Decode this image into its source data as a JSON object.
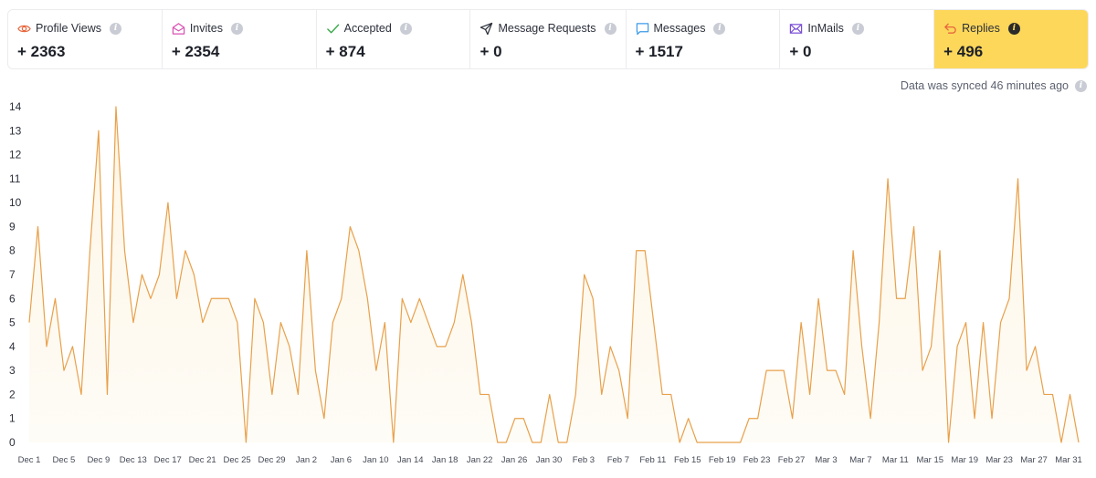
{
  "stats": [
    {
      "key": "profile_views",
      "label": "Profile Views",
      "value": "+ 2363",
      "icon": "eye-icon",
      "color": "#e8663d",
      "active": false
    },
    {
      "key": "invites",
      "label": "Invites",
      "value": "+ 2354",
      "icon": "envelope-open-icon",
      "color": "#d94fb2",
      "active": false
    },
    {
      "key": "accepted",
      "label": "Accepted",
      "value": "+ 874",
      "icon": "checkmark-icon",
      "color": "#3aa84a",
      "active": false
    },
    {
      "key": "message_requests",
      "label": "Message Requests",
      "value": "+ 0",
      "icon": "paper-plane-icon",
      "color": "#2b2f3a",
      "active": false
    },
    {
      "key": "messages",
      "label": "Messages",
      "value": "+ 1517",
      "icon": "chat-bubble-icon",
      "color": "#3b9be8",
      "active": false
    },
    {
      "key": "inmails",
      "label": "InMails",
      "value": "+ 0",
      "icon": "envelope-icon",
      "color": "#7b4fd6",
      "active": false
    },
    {
      "key": "replies",
      "label": "Replies",
      "value": "+ 496",
      "icon": "reply-arrow-icon",
      "color": "#e8663d",
      "active": true
    }
  ],
  "sync_text": "Data was synced 46 minutes ago",
  "colors": {
    "line": "#e8a04a",
    "area": "#fdf6e6",
    "active_card": "#fdd75a"
  },
  "chart_data": {
    "type": "area",
    "x_ticks": [
      "Dec 1",
      "Dec 5",
      "Dec 9",
      "Dec 13",
      "Dec 17",
      "Dec 21",
      "Dec 25",
      "Dec 29",
      "Jan 2",
      "Jan 6",
      "Jan 10",
      "Jan 14",
      "Jan 18",
      "Jan 22",
      "Jan 26",
      "Jan 30",
      "Feb 3",
      "Feb 7",
      "Feb 11",
      "Feb 15",
      "Feb 19",
      "Feb 23",
      "Feb 27",
      "Mar 3",
      "Mar 7",
      "Mar 11",
      "Mar 15",
      "Mar 19",
      "Mar 23",
      "Mar 27",
      "Mar 31"
    ],
    "y_ticks": [
      0,
      1,
      2,
      3,
      4,
      5,
      6,
      7,
      8,
      9,
      10,
      11,
      12,
      13,
      14
    ],
    "ylim": [
      0,
      14
    ],
    "x_start": "Dec 1",
    "x_end": "Mar 31",
    "series": [
      {
        "values": [
          5,
          9,
          4,
          6,
          3,
          4,
          2,
          8,
          13,
          2,
          14,
          8,
          5,
          7,
          6,
          7,
          10,
          6,
          8,
          7,
          5,
          6,
          6,
          6,
          5,
          0,
          6,
          5,
          2,
          5,
          4,
          2,
          8,
          3,
          1,
          5,
          6,
          9,
          8,
          6,
          3,
          5,
          0,
          6,
          5,
          6,
          5,
          4,
          4,
          5,
          7,
          5,
          2,
          2,
          0,
          0,
          1,
          1,
          0,
          0,
          2,
          0,
          0,
          2,
          7,
          6,
          2,
          4,
          3,
          1,
          8,
          8,
          5,
          2,
          2,
          0,
          1,
          0,
          0,
          0,
          0,
          0,
          0,
          1,
          1,
          3,
          3,
          3,
          1,
          5,
          2,
          6,
          3,
          3,
          2,
          8,
          4,
          1,
          5,
          11,
          6,
          6,
          9,
          3,
          4,
          8,
          0,
          4,
          5,
          1,
          5,
          1,
          5,
          6,
          11,
          3,
          4,
          2,
          2,
          0,
          2,
          0
        ]
      }
    ]
  }
}
